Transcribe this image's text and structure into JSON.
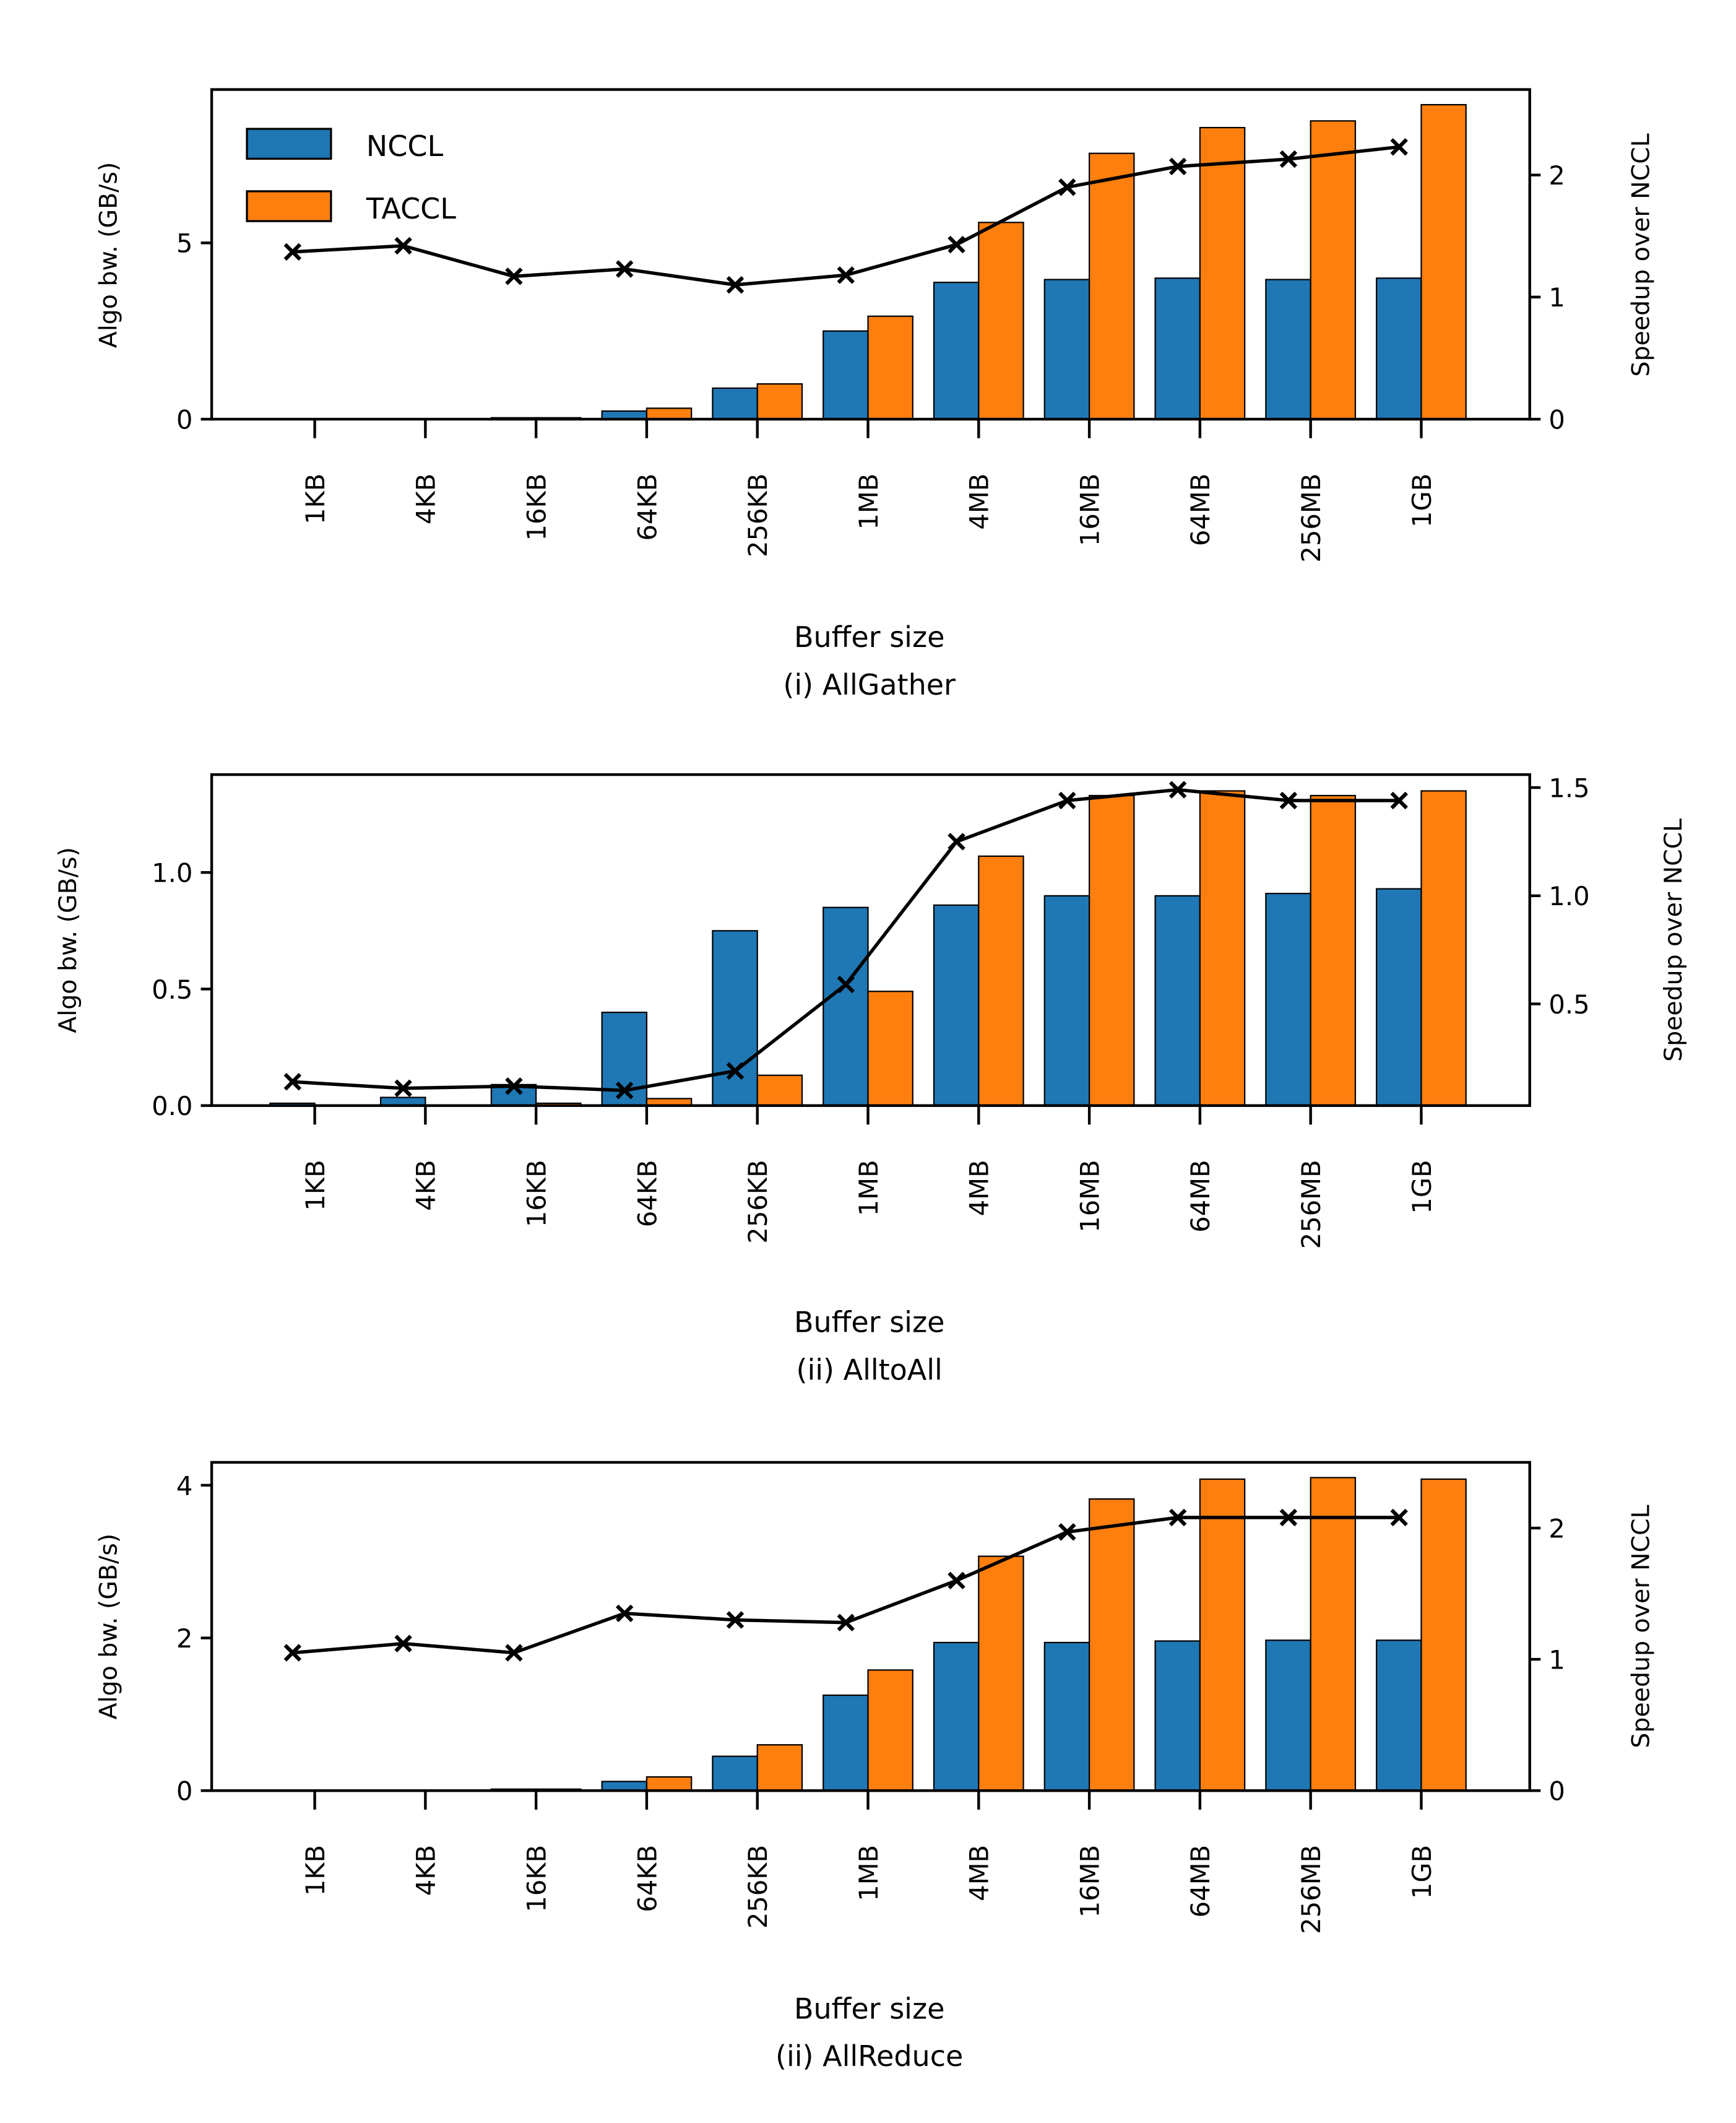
{
  "figure": {
    "colors": {
      "nccl": "#1f77b4",
      "taccl": "#ff7f0e",
      "speedup_line": "#000000",
      "edge": "#000000"
    },
    "legend": {
      "placement": "upper-left",
      "entries": [
        "NCCL",
        "TACCL"
      ],
      "shown_in_panel": 0
    }
  },
  "chart_data": [
    {
      "type": "bar",
      "title": "(i) AllGather",
      "xlabel": "Buffer size",
      "ylabel": "Algo bw. (GB/s)",
      "y2label": "Speedup over NCCL",
      "categories": [
        "1KB",
        "4KB",
        "16KB",
        "64KB",
        "256KB",
        "1MB",
        "4MB",
        "16MB",
        "64MB",
        "256MB",
        "1GB"
      ],
      "ylim": [
        0,
        9.35
      ],
      "yticks": [
        0,
        5
      ],
      "ytick_labels": [
        "0",
        "5"
      ],
      "y2lim": [
        0,
        2.7
      ],
      "y2ticks": [
        0,
        1,
        2
      ],
      "y2tick_labels": [
        "0",
        "1",
        "2"
      ],
      "series": [
        {
          "name": "NCCL",
          "axis": "left",
          "kind": "bar",
          "values": [
            0.0,
            0.0,
            0.04,
            0.23,
            0.88,
            2.5,
            3.88,
            3.96,
            4.0,
            3.96,
            4.0
          ]
        },
        {
          "name": "TACCL",
          "axis": "left",
          "kind": "bar",
          "values": [
            0.0,
            0.0,
            0.04,
            0.31,
            1.0,
            2.92,
            5.58,
            7.54,
            8.27,
            8.46,
            8.92
          ]
        },
        {
          "name": "Speedup",
          "axis": "right",
          "kind": "line",
          "marker": "x",
          "values": [
            1.37,
            1.42,
            1.17,
            1.23,
            1.1,
            1.18,
            1.43,
            1.9,
            2.07,
            2.13,
            2.23
          ]
        }
      ],
      "grid": false
    },
    {
      "type": "bar",
      "title": "(ii) AlltoAll",
      "xlabel": "Buffer size",
      "ylabel": "Algo bw. (GB/s)",
      "y2label": "Speedup over NCCL",
      "categories": [
        "1KB",
        "4KB",
        "16KB",
        "64KB",
        "256KB",
        "1MB",
        "4MB",
        "16MB",
        "64MB",
        "256MB",
        "1GB"
      ],
      "ylim": [
        0,
        1.42
      ],
      "yticks": [
        0,
        0.5,
        1.0
      ],
      "ytick_labels": [
        "0.0",
        "0.5",
        "1.0"
      ],
      "y2lim": [
        0.03,
        1.56
      ],
      "y2ticks": [
        0.5,
        1.0,
        1.5
      ],
      "y2tick_labels": [
        "0.5",
        "1.0",
        "1.5"
      ],
      "series": [
        {
          "name": "NCCL",
          "axis": "left",
          "kind": "bar",
          "values": [
            0.01,
            0.035,
            0.09,
            0.4,
            0.75,
            0.85,
            0.86,
            0.9,
            0.9,
            0.91,
            0.93
          ]
        },
        {
          "name": "TACCL",
          "axis": "left",
          "kind": "bar",
          "values": [
            0.0,
            0.0,
            0.01,
            0.03,
            0.13,
            0.49,
            1.07,
            1.33,
            1.35,
            1.33,
            1.35
          ]
        },
        {
          "name": "Speedup",
          "axis": "right",
          "kind": "line",
          "marker": "x",
          "values": [
            0.14,
            0.11,
            0.12,
            0.1,
            0.19,
            0.59,
            1.25,
            1.44,
            1.49,
            1.44,
            1.44
          ]
        }
      ],
      "grid": false
    },
    {
      "type": "bar",
      "title": "(ii) AllReduce",
      "xlabel": "Buffer size",
      "ylabel": "Algo bw. (GB/s)",
      "y2label": "Speedup over NCCL",
      "categories": [
        "1KB",
        "4KB",
        "16KB",
        "64KB",
        "256KB",
        "1MB",
        "4MB",
        "16MB",
        "64MB",
        "256MB",
        "1GB"
      ],
      "ylim": [
        0,
        4.3
      ],
      "yticks": [
        0,
        2,
        4
      ],
      "ytick_labels": [
        "0",
        "2",
        "4"
      ],
      "y2lim": [
        0,
        2.5
      ],
      "y2ticks": [
        0,
        1,
        2
      ],
      "y2tick_labels": [
        "0",
        "1",
        "2"
      ],
      "series": [
        {
          "name": "NCCL",
          "axis": "left",
          "kind": "bar",
          "values": [
            0.0,
            0.0,
            0.02,
            0.12,
            0.45,
            1.25,
            1.94,
            1.94,
            1.96,
            1.97,
            1.97
          ]
        },
        {
          "name": "TACCL",
          "axis": "left",
          "kind": "bar",
          "values": [
            0.0,
            0.0,
            0.02,
            0.18,
            0.6,
            1.58,
            3.07,
            3.82,
            4.08,
            4.1,
            4.08
          ]
        },
        {
          "name": "Speedup",
          "axis": "right",
          "kind": "line",
          "marker": "x",
          "values": [
            1.05,
            1.12,
            1.05,
            1.35,
            1.3,
            1.28,
            1.6,
            1.97,
            2.08,
            2.08,
            2.08
          ]
        }
      ],
      "grid": false
    }
  ]
}
